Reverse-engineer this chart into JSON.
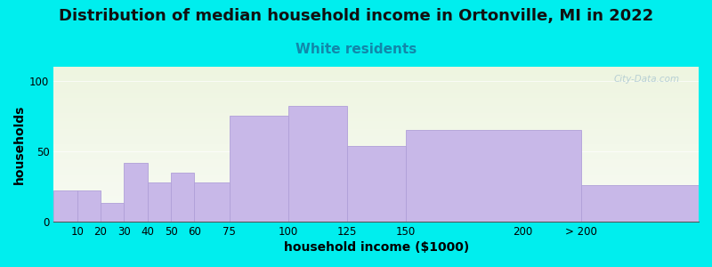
{
  "title": "Distribution of median household income in Ortonville, MI in 2022",
  "subtitle": "White residents",
  "xlabel": "household income ($1000)",
  "ylabel": "households",
  "bg_color": "#00EEEE",
  "plot_bg_gradient_top": "#eef5e0",
  "plot_bg_gradient_bottom": "#f8fbf4",
  "bar_color": "#c8b8e8",
  "bar_edge_color": "#b0a0d8",
  "values": [
    22,
    22,
    13,
    42,
    28,
    35,
    28,
    75,
    82,
    54,
    65,
    26
  ],
  "left_edges": [
    0,
    10,
    20,
    30,
    40,
    50,
    60,
    75,
    100,
    125,
    150,
    225
  ],
  "bar_widths": [
    10,
    10,
    10,
    10,
    10,
    10,
    15,
    25,
    25,
    25,
    75,
    50
  ],
  "xtick_positions": [
    10,
    20,
    30,
    40,
    50,
    60,
    75,
    100,
    125,
    150,
    200,
    225
  ],
  "xtick_labels": [
    "10",
    "20",
    "30",
    "40",
    "50",
    "60",
    "75",
    "100",
    "125",
    "150",
    "200",
    "> 200"
  ],
  "xlim": [
    0,
    275
  ],
  "ylim": [
    0,
    110
  ],
  "yticks": [
    0,
    50,
    100
  ],
  "title_fontsize": 13,
  "subtitle_fontsize": 11,
  "subtitle_color": "#1188aa",
  "axis_label_fontsize": 10,
  "tick_fontsize": 8.5,
  "watermark": "City-Data.com"
}
